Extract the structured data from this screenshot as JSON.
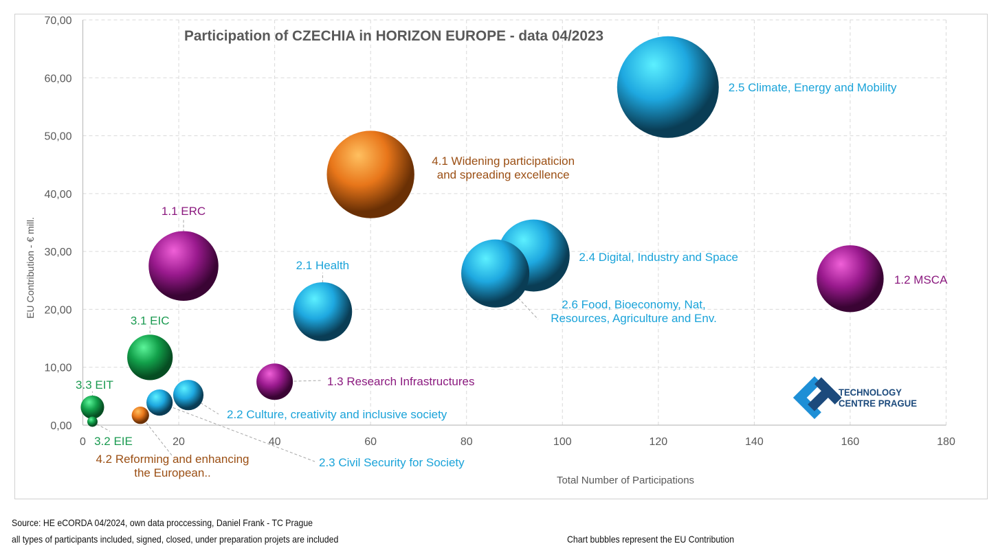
{
  "chart_data": {
    "type": "bubble",
    "title": "Participation of CZECHIA in HORIZON EUROPE - data 04/2023",
    "xlabel": "Total Number of Participations",
    "ylabel": "EU Contribution - € mill.",
    "xlim": [
      0,
      180
    ],
    "ylim": [
      0,
      70
    ],
    "xticks": [
      0,
      20,
      40,
      60,
      80,
      100,
      120,
      140,
      160,
      180
    ],
    "xtick_labels": [
      "0",
      "20",
      "40",
      "60",
      "80",
      "100",
      "120",
      "140",
      "160",
      "180"
    ],
    "yticks": [
      0,
      10,
      20,
      30,
      40,
      50,
      60,
      70
    ],
    "ytick_labels": [
      "0,00",
      "10,00",
      "20,00",
      "30,00",
      "40,00",
      "50,00",
      "60,00",
      "70,00"
    ],
    "grid": true,
    "size_encodes": "EU Contribution",
    "points": [
      {
        "label_lines": [
          "2.5 Climate, Energy and Mobility"
        ],
        "x": 122,
        "y": 58.4,
        "group": "pillar2"
      },
      {
        "label_lines": [
          "4.1 Widening participaticion",
          "and spreading excellence"
        ],
        "x": 60,
        "y": 43.3,
        "group": "pillar4"
      },
      {
        "label_lines": [
          "2.4 Digital, Industry and Space"
        ],
        "x": 94,
        "y": 29.3,
        "group": "pillar2"
      },
      {
        "label_lines": [
          "2.6 Food, Bioeconomy, Nat,",
          "Resources, Agriculture and Env."
        ],
        "x": 86,
        "y": 26.2,
        "group": "pillar2"
      },
      {
        "label_lines": [
          "1.2 MSCA"
        ],
        "x": 160,
        "y": 25.3,
        "group": "pillar1"
      },
      {
        "label_lines": [
          "1.1 ERC"
        ],
        "x": 21,
        "y": 27.5,
        "group": "pillar1"
      },
      {
        "label_lines": [
          "2.1 Health"
        ],
        "x": 50,
        "y": 19.6,
        "group": "pillar2"
      },
      {
        "label_lines": [
          "3.1 EIC"
        ],
        "x": 14,
        "y": 11.7,
        "group": "pillar3"
      },
      {
        "label_lines": [
          "1.3 Research Infrastructures"
        ],
        "x": 40,
        "y": 7.5,
        "group": "pillar1"
      },
      {
        "label_lines": [
          "2.2 Culture, creativity and inclusive society"
        ],
        "x": 22,
        "y": 5.2,
        "group": "pillar2"
      },
      {
        "label_lines": [
          "2.3 Civil Security for Society"
        ],
        "x": 16,
        "y": 3.9,
        "group": "pillar2"
      },
      {
        "label_lines": [
          "4.2 Reforming and enhancing",
          "the European.."
        ],
        "x": 12,
        "y": 1.7,
        "group": "pillar4"
      },
      {
        "label_lines": [
          "3.3 EIT"
        ],
        "x": 2,
        "y": 3.1,
        "group": "pillar3"
      },
      {
        "label_lines": [
          "3.2 EIE"
        ],
        "x": 2,
        "y": 0.6,
        "group": "pillar3"
      }
    ],
    "group_colors": {
      "pillar1": {
        "base": "#9a1a8e",
        "light": "#f060d8",
        "dark": "#3a0434",
        "text": "#8b1a7f"
      },
      "pillar2": {
        "base": "#1ea8e0",
        "light": "#5cf0ff",
        "dark": "#0a3d55",
        "text": "#1aa3d9"
      },
      "pillar3": {
        "base": "#12a04a",
        "light": "#5cf59a",
        "dark": "#064d22",
        "text": "#1a9a50"
      },
      "pillar4": {
        "base": "#e8761a",
        "light": "#ffc060",
        "dark": "#6a3005",
        "text": "#9b4f14"
      }
    }
  },
  "logo": {
    "line1": "TECHNOLOGY",
    "line2": "CENTRE PRAGUE",
    "color_dark": "#1c4a7c",
    "color_light": "#1e8fd6"
  },
  "footer": {
    "source": "Source: HE eCORDA 04/2024, own data proccessing, Daniel Frank - TC Prague",
    "note": "all types of participants included, signed, closed, under preparation projets are included",
    "bubbles_note": "Chart bubbles represent the EU Contribution"
  }
}
